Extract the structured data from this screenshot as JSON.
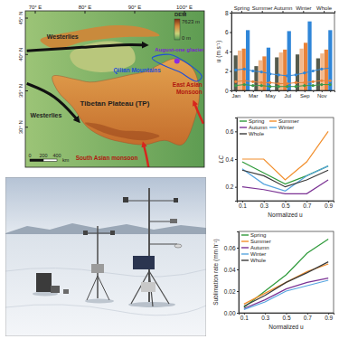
{
  "chart_data": [
    {
      "type": "bar",
      "categories": [
        "Spring",
        "Summer",
        "Autumn",
        "Winter",
        "Whole"
      ],
      "series": [
        {
          "color": "#555b4e",
          "values": [
            3.6,
            2.5,
            3.4,
            3.7,
            3.3
          ]
        },
        {
          "color": "#f3b98c",
          "values": [
            4.1,
            3.1,
            3.9,
            4.3,
            3.8
          ]
        },
        {
          "color": "#e8833a",
          "values": [
            4.3,
            3.5,
            4.2,
            4.9,
            4.2
          ]
        },
        {
          "color": "#2f86d8",
          "values": [
            6.2,
            4.4,
            6.1,
            7.1,
            6.2
          ]
        }
      ],
      "ylabel": "u (m s⁻¹)",
      "ylim": [
        0,
        8
      ],
      "yticks": [
        0,
        2,
        4,
        6,
        8
      ]
    },
    {
      "type": "line",
      "categories": [
        "Jan",
        null,
        "Mar",
        null,
        "May",
        null,
        "Jul",
        null,
        "Sep",
        null,
        "Nov",
        null
      ],
      "series": [
        {
          "color": "#2f86d8",
          "marker": "circle",
          "values": [
            2.1,
            2.2,
            2.0,
            1.9,
            1.7,
            1.6,
            1.5,
            1.6,
            1.8,
            2.0,
            2.2,
            2.3
          ]
        },
        {
          "color": "#e8833a",
          "marker": "circle",
          "values": [
            0.9,
            1.0,
            0.9,
            0.8,
            0.8,
            0.7,
            0.7,
            0.8,
            0.8,
            0.9,
            1.0,
            1.0
          ]
        },
        {
          "color": "#3a9a4a",
          "marker": "circle",
          "values": [
            0.5,
            0.6,
            0.5,
            0.5,
            0.4,
            0.4,
            0.4,
            0.4,
            0.5,
            0.5,
            0.6,
            0.6
          ]
        }
      ],
      "ylim": [
        0,
        8
      ],
      "tick_labels": "x"
    },
    {
      "type": "line",
      "x": [
        0.1,
        0.3,
        0.5,
        0.7,
        0.9
      ],
      "series": [
        {
          "name": "Spring",
          "color": "#2e9a3a",
          "values": [
            0.38,
            0.3,
            0.22,
            0.28,
            0.35
          ]
        },
        {
          "name": "Summer",
          "color": "#f28e2b",
          "values": [
            0.4,
            0.4,
            0.25,
            0.38,
            0.6
          ]
        },
        {
          "name": "Autumn",
          "color": "#7b3294",
          "values": [
            0.2,
            0.18,
            0.15,
            0.15,
            0.25
          ]
        },
        {
          "name": "Winter",
          "color": "#56a5e0",
          "values": [
            0.33,
            0.22,
            0.17,
            0.28,
            0.35
          ]
        },
        {
          "name": "Whole",
          "color": "#3a3a3a",
          "values": [
            0.32,
            0.28,
            0.2,
            0.25,
            0.32
          ]
        }
      ],
      "xlabel": "Normalized u",
      "ylabel": "LC",
      "xlim": [
        0.05,
        0.95
      ],
      "xticks": [
        0.1,
        0.3,
        0.5,
        0.7,
        0.9
      ],
      "ylim": [
        0.1,
        0.7
      ],
      "yticks": [
        0.2,
        0.4,
        0.6
      ],
      "legend": "upper left"
    },
    {
      "type": "line",
      "x": [
        0.1,
        0.3,
        0.5,
        0.7,
        0.9
      ],
      "series": [
        {
          "name": "Spring",
          "color": "#2e9a3a",
          "values": [
            0.005,
            0.02,
            0.035,
            0.055,
            0.068
          ]
        },
        {
          "name": "Summer",
          "color": "#f28e2b",
          "values": [
            0.008,
            0.018,
            0.028,
            0.038,
            0.045
          ]
        },
        {
          "name": "Autumn",
          "color": "#7b3294",
          "values": [
            0.004,
            0.012,
            0.022,
            0.028,
            0.032
          ]
        },
        {
          "name": "Winter",
          "color": "#56a5e0",
          "values": [
            0.003,
            0.01,
            0.02,
            0.025,
            0.03
          ]
        },
        {
          "name": "Whole",
          "color": "#3a3a3a",
          "values": [
            0.006,
            0.016,
            0.028,
            0.037,
            0.047
          ]
        }
      ],
      "xlabel": "Normalized u",
      "ylabel": "Sublimation rate (mm h⁻¹)",
      "xlim": [
        0.05,
        0.95
      ],
      "xticks": [
        0.1,
        0.3,
        0.5,
        0.7,
        0.9
      ],
      "ylim": [
        0,
        0.075
      ],
      "yticks": [
        {
          "value": 0,
          "label": "0.00"
        },
        0.02,
        0.04,
        0.06
      ],
      "legend": "upper left"
    }
  ],
  "map": {
    "lon_range": [
      68,
      104
    ],
    "lat_range": [
      24.5,
      46
    ],
    "lon_ticks": [
      {
        "value": 70,
        "label": "70° E"
      },
      {
        "value": 80,
        "label": "80° E"
      },
      {
        "value": 90,
        "label": "90° E"
      },
      {
        "value": 100,
        "label": "100° E"
      }
    ],
    "lat_ticks": [
      {
        "value": 45,
        "label": "45° N"
      },
      {
        "value": 40,
        "label": "40° N"
      },
      {
        "value": 35,
        "label": "35° N"
      },
      {
        "value": 30,
        "label": "30° N"
      }
    ],
    "labels": {
      "westerlies_north": "Westerlies",
      "westerlies_south": "Westerlies",
      "glacier": "August-one glacier",
      "mountains": "Qilian Mountains",
      "east_monsoon": "East Asian Monsoon",
      "plateau": "Tibetan Plateau (TP)",
      "south_monsoon": "South Asian monsoon"
    },
    "dem_legend": {
      "title": "DEM",
      "max_label": "7623 m",
      "min_label": "0 m"
    },
    "scale_bar": {
      "ticks": [
        0,
        200,
        400
      ],
      "unit": "km"
    }
  }
}
